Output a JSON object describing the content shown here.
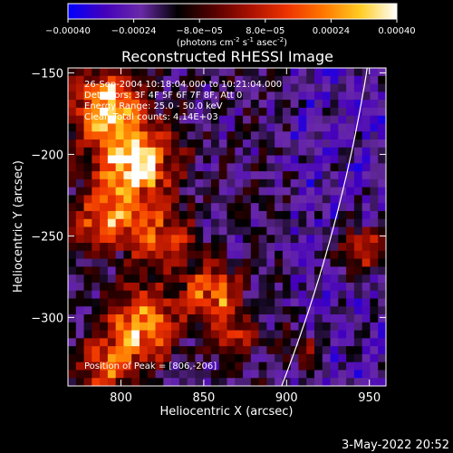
{
  "chart_data": {
    "type": "heatmap",
    "title": "Reconstructed RHESSI Image",
    "xlabel": "Heliocentric X (arcsec)",
    "ylabel": "Heliocentric Y (arcsec)",
    "xlim": [
      768,
      960
    ],
    "ylim": [
      -342,
      -147
    ],
    "x_ticks": [
      800,
      850,
      900,
      950
    ],
    "x_tick_labels": [
      "800",
      "850",
      "900",
      "950"
    ],
    "y_ticks": [
      -150,
      -200,
      -250,
      -300
    ],
    "y_tick_labels": [
      "-150",
      "-200",
      "-250",
      "-300"
    ],
    "colorbar": {
      "range": [
        -0.0004,
        0.0004
      ],
      "ticks": [
        -0.0004,
        -0.00024,
        -8e-05,
        8e-05,
        0.00024,
        0.0004
      ],
      "tick_labels": [
        "-0.00040",
        "-0.00024",
        "-8.0e-05",
        "8.0e-05",
        "0.00024",
        "0.00040"
      ],
      "units_main": "(photons cm",
      "units_sup1": "-2",
      "units_mid": " s",
      "units_sup2": "-1",
      "units_end": " asec",
      "units_sup3": "-2",
      "units_close": ")",
      "colors": [
        "#0000ff",
        "#4400bb",
        "#6a2aa8",
        "#000000",
        "#550000",
        "#aa1100",
        "#ee3300",
        "#ff7700",
        "#ffcc22",
        "#ffffff"
      ]
    },
    "annotations": [
      "26-Sep-2004 10:18:04.000 to 10:21:04.000",
      "Detectors: 3F 4F 5F 6F 7F 8F, Att 0",
      "Energy Range: 25.0 - 50.0 keV",
      "Clean     Total counts: 4.14E+03"
    ],
    "peak_label": "Position of Peak = [806,-206]",
    "peak": [
      806,
      -206
    ],
    "limb_arc_color": "#ffffff",
    "image_bright_regions": [
      {
        "x": 790,
        "y": -170,
        "sigma": 14,
        "amp": 0.0005
      },
      {
        "x": 808,
        "y": -205,
        "sigma": 16,
        "amp": 0.0006
      },
      {
        "x": 790,
        "y": -240,
        "sigma": 12,
        "amp": 0.0004
      },
      {
        "x": 822,
        "y": -250,
        "sigma": 14,
        "amp": 0.0003
      },
      {
        "x": 812,
        "y": -305,
        "sigma": 15,
        "amp": 0.00045
      },
      {
        "x": 790,
        "y": -330,
        "sigma": 11,
        "amp": 0.00035
      },
      {
        "x": 856,
        "y": -285,
        "sigma": 12,
        "amp": 0.0004
      },
      {
        "x": 868,
        "y": -310,
        "sigma": 9,
        "amp": 0.00025
      },
      {
        "x": 945,
        "y": -258,
        "sigma": 10,
        "amp": 0.00035
      },
      {
        "x": 910,
        "y": -318,
        "sigma": 8,
        "amp": 0.0002
      }
    ]
  },
  "footer": {
    "datetime": "3-May-2022 20:52"
  }
}
